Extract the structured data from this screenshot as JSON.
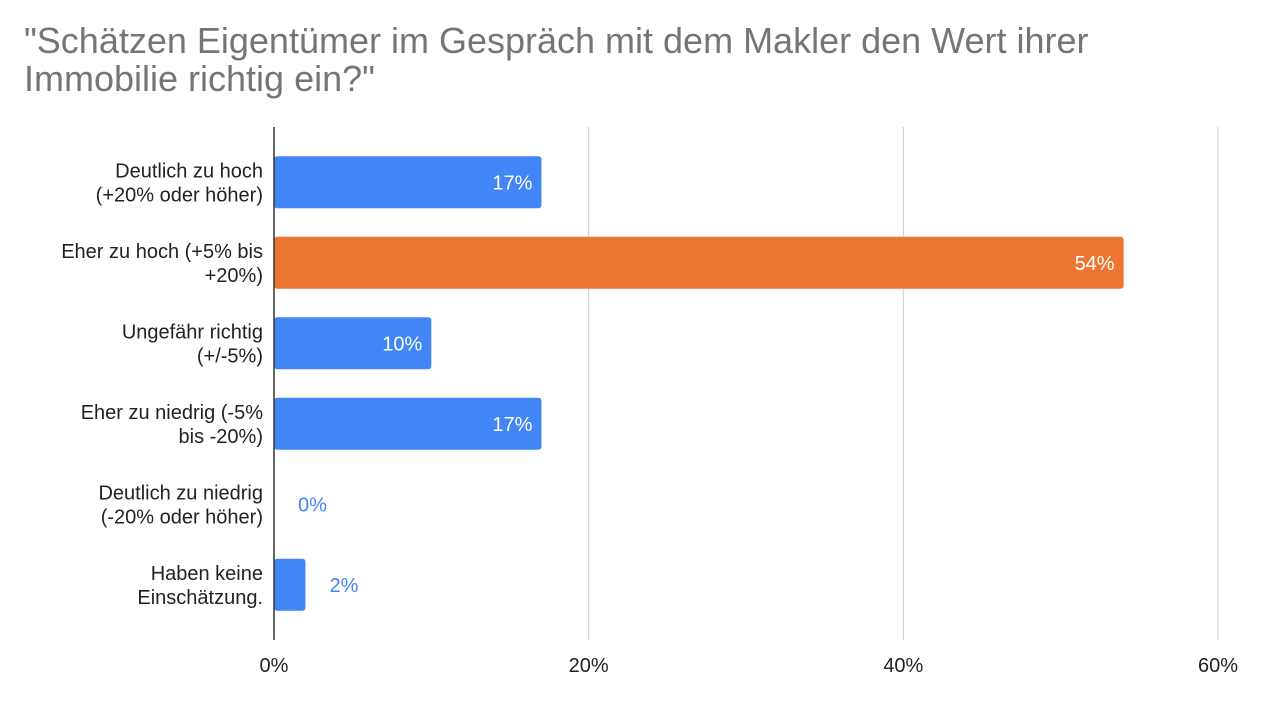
{
  "chart_data": {
    "type": "bar",
    "orientation": "horizontal",
    "title": "\"Schätzen Eigentümer im Gespräch mit dem Makler den Wert ihrer Immobilie richtig ein?\"",
    "categories": [
      [
        "Deutlich zu hoch",
        "(+20% oder höher)"
      ],
      [
        "Eher zu hoch (+5% bis",
        "+20%)"
      ],
      [
        "Ungefähr richtig",
        "(+/-5%)"
      ],
      [
        "Eher zu niedrig (-5%",
        "bis -20%)"
      ],
      [
        "Deutlich zu niedrig",
        "(-20% oder höher)"
      ],
      [
        "Haben keine",
        "Einschätzung."
      ]
    ],
    "values": [
      17,
      54,
      10,
      17,
      0,
      2
    ],
    "data_labels": [
      "17%",
      "54%",
      "10%",
      "17%",
      "0%",
      "2%"
    ],
    "highlight_index": 1,
    "xlim": [
      0,
      60
    ],
    "xticks": [
      0,
      20,
      40,
      60
    ],
    "xtick_labels": [
      "0%",
      "20%",
      "40%",
      "60%"
    ],
    "xlabel": "",
    "ylabel": "",
    "grid": true,
    "legend": "none",
    "colors": {
      "bar": "#4285f4",
      "highlight": "#ed7531",
      "grid": "#cccccc",
      "axis": "#333333",
      "title": "#757575",
      "label_inside": "#ffffff",
      "label_outside": "#4285f4"
    }
  }
}
